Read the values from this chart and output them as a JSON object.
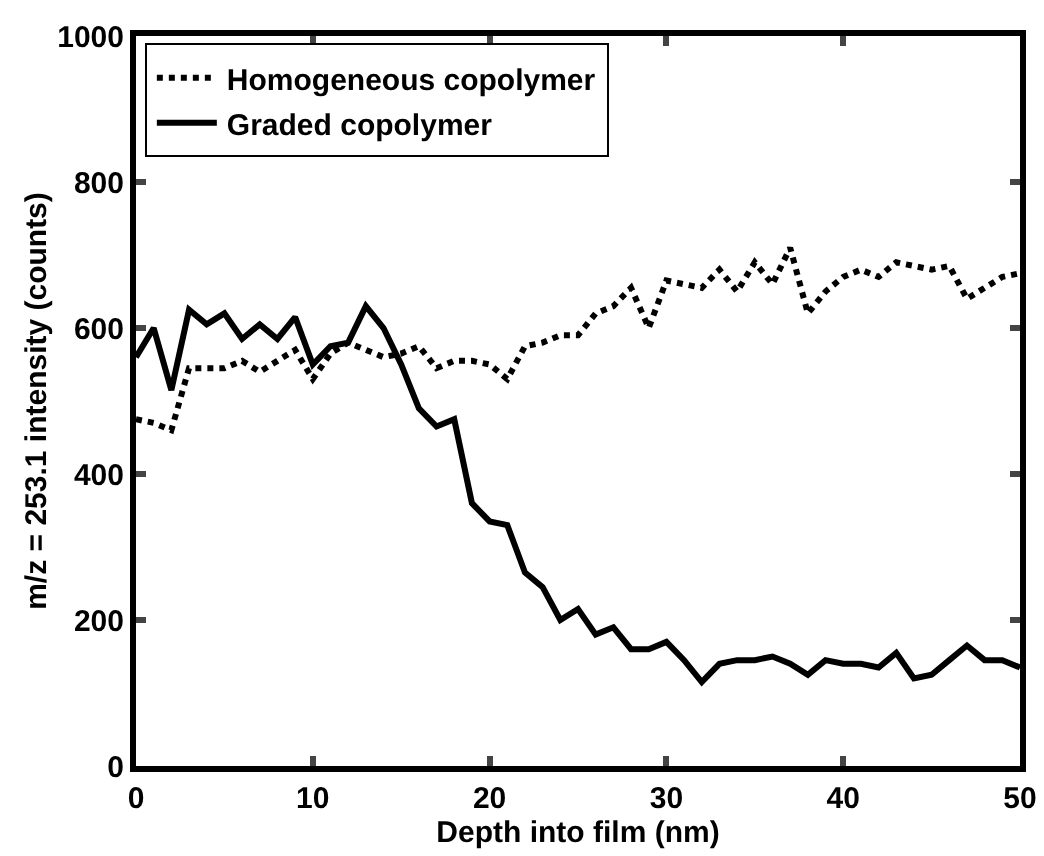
{
  "chart_data": {
    "type": "line",
    "xlabel": "Depth into film (nm)",
    "ylabel": "m/z = 253.1 intensity (counts)",
    "x": [
      0,
      1,
      2,
      3,
      4,
      5,
      6,
      7,
      8,
      9,
      10,
      11,
      12,
      13,
      14,
      15,
      16,
      17,
      18,
      19,
      20,
      21,
      22,
      23,
      24,
      25,
      26,
      27,
      28,
      29,
      30,
      31,
      32,
      33,
      34,
      35,
      36,
      37,
      38,
      39,
      40,
      41,
      42,
      43,
      44,
      45,
      46,
      47,
      48,
      49,
      50
    ],
    "series": [
      {
        "name": "Homogeneous copolymer",
        "color": "#000000",
        "line_style": "dotted",
        "values": [
          475,
          470,
          460,
          545,
          545,
          545,
          555,
          540,
          555,
          570,
          530,
          565,
          580,
          570,
          560,
          565,
          575,
          545,
          555,
          555,
          550,
          530,
          575,
          580,
          590,
          590,
          620,
          630,
          655,
          600,
          665,
          660,
          655,
          680,
          650,
          690,
          660,
          710,
          620,
          650,
          670,
          680,
          670,
          690,
          685,
          680,
          685,
          640,
          655,
          670,
          675
        ]
      },
      {
        "name": "Graded copolymer",
        "color": "#000000",
        "line_style": "solid",
        "values": [
          560,
          600,
          515,
          625,
          605,
          620,
          585,
          605,
          585,
          615,
          550,
          575,
          580,
          630,
          600,
          550,
          490,
          465,
          475,
          360,
          335,
          330,
          265,
          245,
          200,
          215,
          180,
          190,
          160,
          160,
          170,
          145,
          115,
          140,
          145,
          145,
          150,
          140,
          125,
          145,
          140,
          140,
          135,
          155,
          120,
          125,
          145,
          165,
          145,
          145,
          135
        ]
      }
    ],
    "xlim": [
      0,
      50
    ],
    "xticks": [
      0,
      10,
      20,
      30,
      40,
      50
    ],
    "ylim": [
      0,
      1000
    ],
    "yticks": [
      0,
      200,
      400,
      600,
      800,
      1000
    ],
    "grid": false,
    "legend": "top left",
    "marker": "none"
  }
}
